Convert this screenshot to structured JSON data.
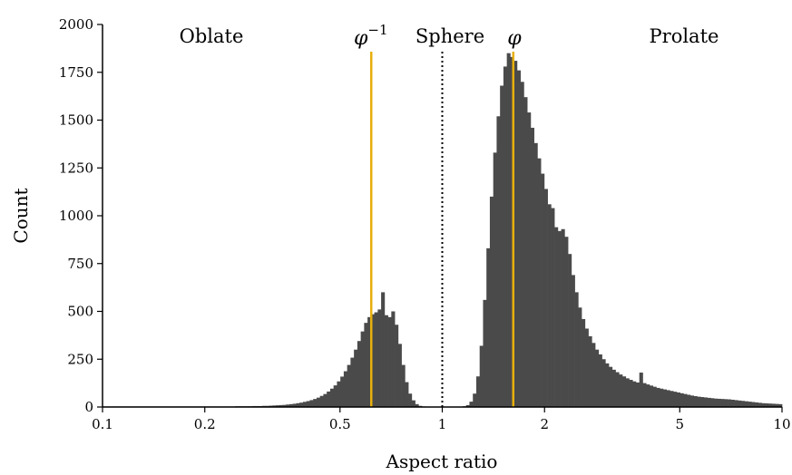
{
  "chart_data": {
    "type": "bar",
    "subtype": "histogram",
    "xscale": "log",
    "xlim": [
      0.1,
      10
    ],
    "ylim": [
      0,
      2000
    ],
    "xlabel": "Aspect ratio",
    "ylabel": "Count",
    "xticks": [
      0.1,
      0.2,
      0.5,
      1,
      2,
      5,
      10
    ],
    "xtick_labels": [
      "0.1",
      "0.2",
      "0.5",
      "1",
      "2",
      "5",
      "10"
    ],
    "yticks": [
      0,
      250,
      500,
      750,
      1000,
      1250,
      1500,
      1750,
      2000
    ],
    "ytick_labels": [
      "0",
      "250",
      "500",
      "750",
      "1000",
      "1250",
      "1500",
      "1750",
      "2000"
    ],
    "bar_color": "#4a4a4a",
    "grid": false,
    "histogram": {
      "bins": 200,
      "bin_edges_log10": [
        -1,
        1
      ],
      "counts": [
        3,
        3,
        3,
        3,
        3,
        3,
        3,
        3,
        3,
        3,
        3,
        3,
        3,
        3,
        3,
        3,
        3,
        3,
        3,
        3,
        3,
        3,
        3,
        3,
        3,
        3,
        3,
        3,
        3,
        3,
        3,
        3,
        3,
        3,
        3,
        3,
        3,
        3,
        3,
        4,
        4,
        4,
        4,
        4,
        5,
        5,
        5,
        6,
        6,
        7,
        8,
        9,
        10,
        11,
        13,
        15,
        17,
        20,
        23,
        27,
        31,
        36,
        42,
        49,
        58,
        68,
        81,
        96,
        113,
        134,
        159,
        187,
        220,
        258,
        300,
        345,
        395,
        440,
        470,
        485,
        495,
        510,
        600,
        480,
        470,
        500,
        430,
        330,
        220,
        130,
        70,
        35,
        15,
        6,
        3,
        2,
        1,
        1,
        1,
        1,
        1,
        1,
        1,
        1,
        1,
        2,
        4,
        10,
        28,
        70,
        160,
        320,
        560,
        830,
        1100,
        1330,
        1520,
        1680,
        1780,
        1850,
        1830,
        1810,
        1760,
        1700,
        1620,
        1540,
        1460,
        1380,
        1300,
        1220,
        1140,
        1060,
        1040,
        940,
        920,
        930,
        890,
        800,
        690,
        600,
        520,
        460,
        410,
        370,
        335,
        300,
        275,
        250,
        228,
        210,
        195,
        182,
        170,
        160,
        150,
        142,
        134,
        128,
        180,
        125,
        118,
        112,
        106,
        100,
        96,
        92,
        88,
        84,
        80,
        76,
        72,
        68,
        64,
        60,
        57,
        54,
        52,
        50,
        48,
        46,
        44,
        43,
        42,
        41,
        40,
        38,
        36,
        34,
        32,
        30,
        28,
        26,
        24,
        22,
        20,
        19,
        18,
        17,
        16,
        15
      ]
    },
    "reference_lines": [
      {
        "label": "φ⁻¹",
        "x": 0.618,
        "style": "solid",
        "color": "#e8b00c"
      },
      {
        "label": "φ",
        "x": 1.618,
        "style": "solid",
        "color": "#e8b00c"
      },
      {
        "label": "Sphere",
        "x": 1,
        "style": "dotted",
        "color": "#000000"
      }
    ],
    "annotations": [
      {
        "text": "Oblate"
      },
      {
        "text": "Sphere"
      },
      {
        "text": "Prolate"
      }
    ],
    "phi_inv_base": "φ",
    "phi_inv_exp": "−1",
    "phi_text": "φ"
  }
}
